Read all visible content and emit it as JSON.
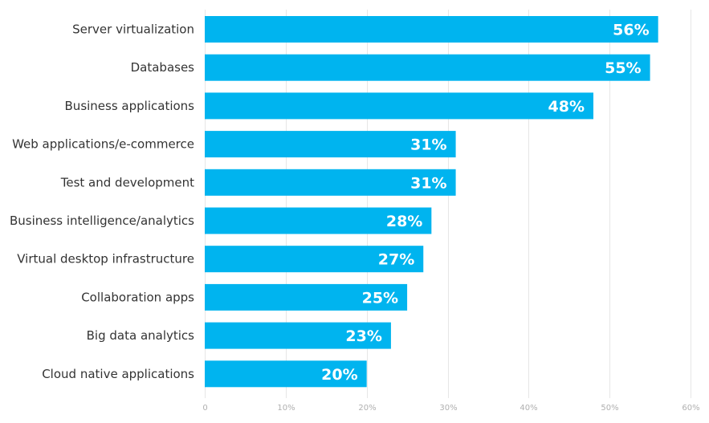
{
  "chart_data": {
    "type": "bar",
    "orientation": "horizontal",
    "title": "",
    "xlabel": "",
    "ylabel": "",
    "categories": [
      "Server virtualization",
      "Databases",
      "Business applications",
      "Web applications/e-commerce",
      "Test and development",
      "Business intelligence/analytics",
      "Virtual desktop infrastructure",
      "Collaboration apps",
      "Big data analytics",
      "Cloud native applications"
    ],
    "values": [
      56,
      55,
      48,
      31,
      31,
      28,
      27,
      25,
      23,
      20
    ],
    "value_labels": [
      "56%",
      "55%",
      "48%",
      "31%",
      "31%",
      "28%",
      "27%",
      "25%",
      "23%",
      "20%"
    ],
    "xlim": [
      0,
      60
    ],
    "x_ticks": [
      0,
      10,
      20,
      30,
      40,
      50,
      60
    ],
    "x_tick_labels": [
      "0",
      "10%",
      "20%",
      "30%",
      "40%",
      "50%",
      "60%"
    ],
    "grid": true,
    "legend": "none",
    "colors": {
      "bar": "#00b4ef",
      "bar_label": "#ffffff",
      "category_label": "#333333",
      "tick_label": "#b0b0b0",
      "grid": "#e6e6e6"
    }
  }
}
